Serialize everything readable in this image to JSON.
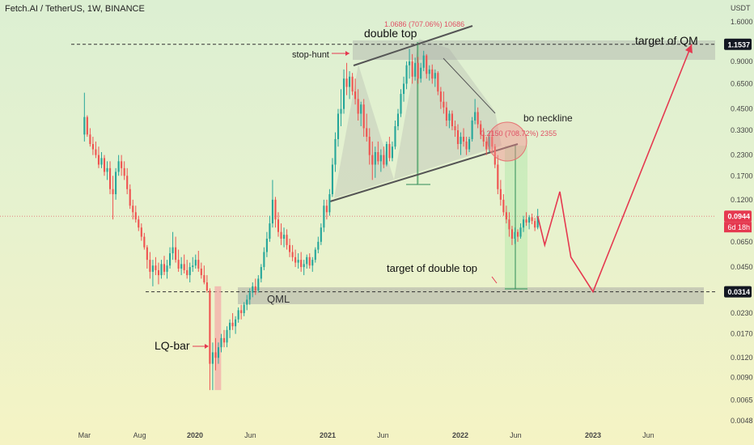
{
  "header": {
    "symbol": "Fetch.AI / TetherUS, 1W, BINANCE"
  },
  "chart_data": {
    "type": "candlestick",
    "currency": "USDT",
    "y_scale": "log",
    "y_ticks": [
      "1.6000",
      "0.9000",
      "0.6500",
      "0.4500",
      "0.3300",
      "0.2300",
      "0.1700",
      "0.1200",
      "0.0650",
      "0.0450",
      "0.0230",
      "0.0170",
      "0.0120",
      "0.0090",
      "0.0065",
      "0.0048"
    ],
    "x_ticks": [
      "Mar",
      "Aug",
      "2020",
      "Jun",
      "2021",
      "Jun",
      "2022",
      "Jun",
      "2023",
      "Jun"
    ],
    "price_labels": {
      "top_level": "1.1537",
      "current": "0.0944",
      "countdown": "6d 18h",
      "bottom_level": "0.0314"
    },
    "annotations": {
      "double_top": "double top",
      "stop_hunt": "stop-hunt",
      "measure_top": "1.0686 (707.06%) 10686",
      "bo_neckline": "bo neckline",
      "measure_mid": "0.2150 (708.72%) 2355",
      "target_double_top": "target of double top",
      "target_qm": "target of QM",
      "qml": "QML",
      "lq_bar": "LQ-bar"
    },
    "colors": {
      "up": "#26a69a",
      "down": "#ef5350",
      "arrow": "#e53950",
      "zone": "#9e9e9e",
      "neckline": "#555555"
    },
    "candles": [
      [
        "2019-03",
        0.31,
        0.57,
        0.28,
        0.4
      ],
      [
        "2019-03",
        0.4,
        0.41,
        0.3,
        0.31
      ],
      [
        "2019-03",
        0.31,
        0.34,
        0.26,
        0.27
      ],
      [
        "2019-03",
        0.27,
        0.3,
        0.23,
        0.25
      ],
      [
        "2019-04",
        0.25,
        0.28,
        0.22,
        0.23
      ],
      [
        "2019-04",
        0.23,
        0.26,
        0.19,
        0.2
      ],
      [
        "2019-04",
        0.2,
        0.24,
        0.19,
        0.22
      ],
      [
        "2019-04",
        0.22,
        0.23,
        0.17,
        0.18
      ],
      [
        "2019-05",
        0.18,
        0.21,
        0.16,
        0.19
      ],
      [
        "2019-05",
        0.19,
        0.21,
        0.13,
        0.14
      ],
      [
        "2019-05",
        0.14,
        0.17,
        0.09,
        0.13
      ],
      [
        "2019-05",
        0.13,
        0.19,
        0.12,
        0.18
      ],
      [
        "2019-06",
        0.18,
        0.23,
        0.17,
        0.21
      ],
      [
        "2019-06",
        0.21,
        0.23,
        0.17,
        0.19
      ],
      [
        "2019-06",
        0.19,
        0.21,
        0.16,
        0.17
      ],
      [
        "2019-06",
        0.17,
        0.19,
        0.13,
        0.14
      ],
      [
        "2019-07",
        0.14,
        0.15,
        0.105,
        0.11
      ],
      [
        "2019-07",
        0.11,
        0.12,
        0.09,
        0.1
      ],
      [
        "2019-07",
        0.1,
        0.11,
        0.086,
        0.09
      ],
      [
        "2019-07",
        0.09,
        0.095,
        0.076,
        0.08
      ],
      [
        "2019-08",
        0.08,
        0.085,
        0.066,
        0.07
      ],
      [
        "2019-08",
        0.07,
        0.074,
        0.058,
        0.06
      ],
      [
        "2019-08",
        0.06,
        0.062,
        0.044,
        0.05
      ],
      [
        "2019-08",
        0.05,
        0.056,
        0.038,
        0.042
      ],
      [
        "2019-09",
        0.042,
        0.05,
        0.034,
        0.046
      ],
      [
        "2019-09",
        0.046,
        0.052,
        0.04,
        0.043
      ],
      [
        "2019-09",
        0.043,
        0.048,
        0.035,
        0.04
      ],
      [
        "2019-09",
        0.04,
        0.05,
        0.038,
        0.047
      ],
      [
        "2019-10",
        0.047,
        0.053,
        0.04,
        0.042
      ],
      [
        "2019-10",
        0.042,
        0.05,
        0.038,
        0.046
      ],
      [
        "2019-10",
        0.046,
        0.06,
        0.044,
        0.055
      ],
      [
        "2019-10",
        0.055,
        0.075,
        0.05,
        0.06
      ],
      [
        "2019-11",
        0.06,
        0.07,
        0.048,
        0.05
      ],
      [
        "2019-11",
        0.05,
        0.058,
        0.042,
        0.044
      ],
      [
        "2019-11",
        0.044,
        0.052,
        0.04,
        0.047
      ],
      [
        "2019-11",
        0.047,
        0.054,
        0.041,
        0.043
      ],
      [
        "2019-12",
        0.043,
        0.05,
        0.038,
        0.04
      ],
      [
        "2019-12",
        0.04,
        0.048,
        0.036,
        0.045
      ],
      [
        "2019-12",
        0.045,
        0.052,
        0.042,
        0.046
      ],
      [
        "2019-12",
        0.046,
        0.054,
        0.044,
        0.05
      ],
      [
        "2020-01",
        0.05,
        0.057,
        0.042,
        0.044
      ],
      [
        "2020-01",
        0.044,
        0.048,
        0.038,
        0.04
      ],
      [
        "2020-01",
        0.04,
        0.046,
        0.035,
        0.036
      ],
      [
        "2020-01",
        0.036,
        0.04,
        0.031,
        0.032
      ],
      [
        "2020-03",
        0.032,
        0.033,
        0.0075,
        0.011
      ],
      [
        "2020-03",
        0.011,
        0.015,
        0.0075,
        0.013
      ],
      [
        "2020-03",
        0.013,
        0.016,
        0.01,
        0.012
      ],
      [
        "2020-04",
        0.012,
        0.015,
        0.011,
        0.014
      ],
      [
        "2020-04",
        0.014,
        0.017,
        0.013,
        0.016
      ],
      [
        "2020-04",
        0.016,
        0.018,
        0.014,
        0.015
      ],
      [
        "2020-04",
        0.015,
        0.019,
        0.014,
        0.018
      ],
      [
        "2020-05",
        0.018,
        0.021,
        0.016,
        0.02
      ],
      [
        "2020-05",
        0.02,
        0.023,
        0.018,
        0.019
      ],
      [
        "2020-05",
        0.019,
        0.022,
        0.017,
        0.021
      ],
      [
        "2020-05",
        0.021,
        0.025,
        0.02,
        0.024
      ],
      [
        "2020-06",
        0.024,
        0.026,
        0.021,
        0.023
      ],
      [
        "2020-06",
        0.023,
        0.027,
        0.022,
        0.026
      ],
      [
        "2020-06",
        0.026,
        0.03,
        0.024,
        0.028
      ],
      [
        "2020-06",
        0.028,
        0.033,
        0.026,
        0.031
      ],
      [
        "2020-07",
        0.031,
        0.036,
        0.029,
        0.034
      ],
      [
        "2020-07",
        0.034,
        0.038,
        0.03,
        0.032
      ],
      [
        "2020-07",
        0.032,
        0.04,
        0.031,
        0.038
      ],
      [
        "2020-07",
        0.038,
        0.047,
        0.036,
        0.045
      ],
      [
        "2020-08",
        0.045,
        0.06,
        0.043,
        0.056
      ],
      [
        "2020-08",
        0.056,
        0.075,
        0.052,
        0.068
      ],
      [
        "2020-08",
        0.068,
        0.095,
        0.065,
        0.085
      ],
      [
        "2020-08",
        0.085,
        0.16,
        0.08,
        0.12
      ],
      [
        "2020-09",
        0.12,
        0.125,
        0.08,
        0.09
      ],
      [
        "2020-09",
        0.09,
        0.1,
        0.07,
        0.075
      ],
      [
        "2020-09",
        0.075,
        0.085,
        0.062,
        0.068
      ],
      [
        "2020-09",
        0.068,
        0.08,
        0.06,
        0.072
      ],
      [
        "2020-10",
        0.072,
        0.078,
        0.058,
        0.062
      ],
      [
        "2020-10",
        0.062,
        0.068,
        0.052,
        0.056
      ],
      [
        "2020-10",
        0.056,
        0.062,
        0.049,
        0.052
      ],
      [
        "2020-10",
        0.052,
        0.058,
        0.045,
        0.048
      ],
      [
        "2020-11",
        0.048,
        0.055,
        0.044,
        0.05
      ],
      [
        "2020-11",
        0.05,
        0.056,
        0.042,
        0.045
      ],
      [
        "2020-11",
        0.045,
        0.05,
        0.04,
        0.047
      ],
      [
        "2020-11",
        0.047,
        0.054,
        0.044,
        0.052
      ],
      [
        "2020-12",
        0.052,
        0.055,
        0.044,
        0.046
      ],
      [
        "2020-12",
        0.046,
        0.052,
        0.042,
        0.05
      ],
      [
        "2020-12",
        0.05,
        0.06,
        0.048,
        0.058
      ],
      [
        "2020-12",
        0.058,
        0.07,
        0.055,
        0.065
      ],
      [
        "2021-01",
        0.065,
        0.085,
        0.062,
        0.08
      ],
      [
        "2021-01",
        0.08,
        0.12,
        0.075,
        0.11
      ],
      [
        "2021-01",
        0.11,
        0.12,
        0.09,
        0.1
      ],
      [
        "2021-01",
        0.1,
        0.14,
        0.095,
        0.13
      ],
      [
        "2021-02",
        0.13,
        0.22,
        0.125,
        0.2
      ],
      [
        "2021-02",
        0.2,
        0.32,
        0.18,
        0.29
      ],
      [
        "2021-02",
        0.29,
        0.45,
        0.26,
        0.42
      ],
      [
        "2021-02",
        0.42,
        0.6,
        0.35,
        0.45
      ],
      [
        "2021-03",
        0.45,
        0.8,
        0.42,
        0.7
      ],
      [
        "2021-03",
        0.7,
        0.88,
        0.55,
        0.62
      ],
      [
        "2021-03",
        0.62,
        0.78,
        0.52,
        0.72
      ],
      [
        "2021-03",
        0.72,
        0.76,
        0.55,
        0.58
      ],
      [
        "2021-04",
        0.58,
        0.7,
        0.48,
        0.52
      ],
      [
        "2021-04",
        0.52,
        0.6,
        0.38,
        0.42
      ],
      [
        "2021-04",
        0.42,
        0.5,
        0.35,
        0.48
      ],
      [
        "2021-04",
        0.48,
        0.52,
        0.3,
        0.34
      ],
      [
        "2021-05",
        0.34,
        0.42,
        0.28,
        0.3
      ],
      [
        "2021-05",
        0.3,
        0.34,
        0.2,
        0.23
      ],
      [
        "2021-05",
        0.23,
        0.28,
        0.16,
        0.2
      ],
      [
        "2021-05",
        0.2,
        0.26,
        0.165,
        0.24
      ],
      [
        "2021-06",
        0.24,
        0.28,
        0.2,
        0.21
      ],
      [
        "2021-06",
        0.21,
        0.25,
        0.18,
        0.23
      ],
      [
        "2021-06",
        0.23,
        0.26,
        0.19,
        0.2
      ],
      [
        "2021-06",
        0.2,
        0.28,
        0.195,
        0.27
      ],
      [
        "2021-07",
        0.27,
        0.3,
        0.21,
        0.22
      ],
      [
        "2021-07",
        0.22,
        0.28,
        0.21,
        0.26
      ],
      [
        "2021-07",
        0.26,
        0.38,
        0.25,
        0.35
      ],
      [
        "2021-07",
        0.35,
        0.45,
        0.33,
        0.42
      ],
      [
        "2021-08",
        0.42,
        0.6,
        0.4,
        0.56
      ],
      [
        "2021-08",
        0.56,
        0.72,
        0.5,
        0.65
      ],
      [
        "2021-08",
        0.65,
        0.9,
        0.6,
        0.85
      ],
      [
        "2021-08",
        0.85,
        1.08,
        0.7,
        0.9
      ],
      [
        "2021-09",
        0.9,
        1.0,
        0.65,
        0.72
      ],
      [
        "2021-09",
        0.72,
        0.95,
        0.68,
        0.88
      ],
      [
        "2021-09",
        0.88,
        0.96,
        0.65,
        0.7
      ],
      [
        "2021-09",
        0.7,
        0.88,
        0.66,
        0.82
      ],
      [
        "2021-10",
        0.82,
        1.05,
        0.78,
        0.98
      ],
      [
        "2021-10",
        0.98,
        1.0,
        0.7,
        0.75
      ],
      [
        "2021-10",
        0.75,
        0.85,
        0.68,
        0.8
      ],
      [
        "2021-10",
        0.8,
        0.86,
        0.65,
        0.7
      ],
      [
        "2021-11",
        0.7,
        0.8,
        0.62,
        0.76
      ],
      [
        "2021-11",
        0.76,
        0.78,
        0.55,
        0.58
      ],
      [
        "2021-11",
        0.58,
        0.62,
        0.45,
        0.5
      ],
      [
        "2021-11",
        0.5,
        0.58,
        0.42,
        0.46
      ],
      [
        "2021-12",
        0.46,
        0.5,
        0.35,
        0.38
      ],
      [
        "2021-12",
        0.38,
        0.44,
        0.34,
        0.42
      ],
      [
        "2021-12",
        0.42,
        0.44,
        0.33,
        0.35
      ],
      [
        "2021-12",
        0.35,
        0.38,
        0.3,
        0.33
      ],
      [
        "2022-01",
        0.33,
        0.36,
        0.25,
        0.27
      ],
      [
        "2022-01",
        0.27,
        0.32,
        0.23,
        0.3
      ],
      [
        "2022-01",
        0.3,
        0.34,
        0.26,
        0.28
      ],
      [
        "2022-01",
        0.28,
        0.3,
        0.23,
        0.25
      ],
      [
        "2022-02",
        0.25,
        0.3,
        0.24,
        0.29
      ],
      [
        "2022-02",
        0.29,
        0.4,
        0.28,
        0.38
      ],
      [
        "2022-02",
        0.38,
        0.52,
        0.36,
        0.43
      ],
      [
        "2022-02",
        0.43,
        0.46,
        0.34,
        0.36
      ],
      [
        "2022-03",
        0.36,
        0.38,
        0.29,
        0.31
      ],
      [
        "2022-03",
        0.31,
        0.34,
        0.26,
        0.28
      ],
      [
        "2022-03",
        0.28,
        0.3,
        0.23,
        0.25
      ],
      [
        "2022-03",
        0.25,
        0.32,
        0.24,
        0.3
      ],
      [
        "2022-04",
        0.3,
        0.33,
        0.24,
        0.26
      ],
      [
        "2022-04",
        0.26,
        0.27,
        0.19,
        0.2
      ],
      [
        "2022-04",
        0.2,
        0.23,
        0.13,
        0.14
      ],
      [
        "2022-05",
        0.14,
        0.16,
        0.11,
        0.12
      ],
      [
        "2022-05",
        0.12,
        0.13,
        0.095,
        0.1
      ],
      [
        "2022-05",
        0.1,
        0.11,
        0.085,
        0.09
      ],
      [
        "2022-05",
        0.09,
        0.1,
        0.07,
        0.078
      ],
      [
        "2022-06",
        0.078,
        0.082,
        0.062,
        0.068
      ],
      [
        "2022-06",
        0.068,
        0.08,
        0.063,
        0.075
      ],
      [
        "2022-06",
        0.075,
        0.078,
        0.065,
        0.07
      ],
      [
        "2022-06",
        0.07,
        0.085,
        0.068,
        0.08
      ],
      [
        "2022-07",
        0.08,
        0.095,
        0.075,
        0.09
      ],
      [
        "2022-07",
        0.09,
        0.1,
        0.082,
        0.086
      ],
      [
        "2022-07",
        0.086,
        0.096,
        0.078,
        0.093
      ],
      [
        "2022-07",
        0.093,
        0.098,
        0.084,
        0.088
      ],
      [
        "2022-08",
        0.088,
        0.092,
        0.076,
        0.08
      ],
      [
        "2022-08",
        0.08,
        0.105,
        0.078,
        0.0944
      ]
    ],
    "projection": [
      {
        "t": "2022-08",
        "y": 0.0944
      },
      {
        "t": "2022-08-20",
        "y": 0.062
      },
      {
        "t": "2022-10",
        "y": 0.135
      },
      {
        "t": "2022-11",
        "y": 0.052
      },
      {
        "t": "2023-01",
        "y": 0.0314
      },
      {
        "t": "2023-09",
        "y": 1.1537
      }
    ]
  }
}
